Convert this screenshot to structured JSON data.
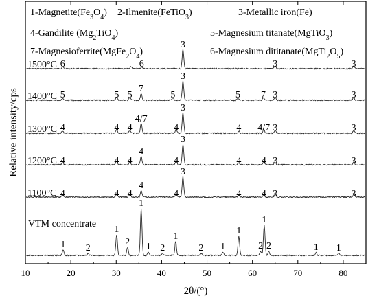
{
  "chart_data": {
    "type": "line",
    "xlabel": "2θ/(°)",
    "ylabel": "Relative intensity/cps",
    "xlim": [
      10,
      85
    ],
    "x_ticks": [
      10,
      20,
      30,
      40,
      50,
      60,
      70,
      80
    ],
    "legend": [
      {
        "html": "1-Magnetite(Fe<tspan baseline-shift=\"sub\" font-size=\"10\">3</tspan>O<tspan baseline-shift=\"sub\" font-size=\"10\">4</tspan>)"
      },
      {
        "html": "2-Ilmenite(FeTiO<tspan baseline-shift=\"sub\" font-size=\"10\">3</tspan>)"
      },
      {
        "html": "3-Metallic iron(Fe)"
      },
      {
        "html": "4-Gandilite (Mg<tspan baseline-shift=\"sub\" font-size=\"10\">2</tspan>TiO<tspan baseline-shift=\"sub\" font-size=\"10\">4</tspan>)"
      },
      {
        "html": "5-Magnesium titanate(MgTiO<tspan baseline-shift=\"sub\" font-size=\"10\">3</tspan>)"
      },
      {
        "html": "7-Magnesioferrite(MgFe<tspan baseline-shift=\"sub\" font-size=\"10\">2</tspan>O<tspan baseline-shift=\"sub\" font-size=\"10\">4</tspan>)"
      },
      {
        "html": "6-Magnesium dititanate(MgTi<tspan baseline-shift=\"sub\" font-size=\"10\">2</tspan>O<tspan baseline-shift=\"sub\" font-size=\"10\">5</tspan>)"
      }
    ],
    "series": [
      {
        "name": "1500°C",
        "peaks": [
          {
            "x": 18.2,
            "h": 3,
            "label": "6"
          },
          {
            "x": 33.3,
            "h": 3
          },
          {
            "x": 35.6,
            "h": 3,
            "label": "6"
          },
          {
            "x": 44.7,
            "h": 28,
            "label": "3"
          },
          {
            "x": 65.0,
            "h": 4,
            "label": "3"
          },
          {
            "x": 82.3,
            "h": 4,
            "label": "3"
          }
        ]
      },
      {
        "name": "1400°C",
        "peaks": [
          {
            "x": 18.2,
            "h": 3,
            "label": "5"
          },
          {
            "x": 30.1,
            "h": 5,
            "label": "5"
          },
          {
            "x": 33.0,
            "h": 4,
            "label": "5"
          },
          {
            "x": 35.5,
            "h": 10,
            "label": "7"
          },
          {
            "x": 42.5,
            "h": 4,
            "label": "5"
          },
          {
            "x": 44.7,
            "h": 28,
            "label": "3"
          },
          {
            "x": 56.8,
            "h": 3,
            "label": "5"
          },
          {
            "x": 62.4,
            "h": 4,
            "label": "7"
          },
          {
            "x": 65.0,
            "h": 4,
            "label": "3"
          },
          {
            "x": 82.3,
            "h": 4,
            "label": "3"
          }
        ]
      },
      {
        "name": "1300°C",
        "peaks": [
          {
            "x": 18.2,
            "h": 3,
            "label": "4"
          },
          {
            "x": 30.1,
            "h": 6,
            "label": "4"
          },
          {
            "x": 33.0,
            "h": 4,
            "label": "4"
          },
          {
            "x": 35.5,
            "h": 14,
            "label": "4/7"
          },
          {
            "x": 43.2,
            "h": 6,
            "label": "4"
          },
          {
            "x": 44.7,
            "h": 30,
            "label": "3"
          },
          {
            "x": 57.0,
            "h": 3,
            "label": "4"
          },
          {
            "x": 62.5,
            "h": 6,
            "label": "4/7"
          },
          {
            "x": 65.0,
            "h": 4,
            "label": "3"
          },
          {
            "x": 82.3,
            "h": 4,
            "label": "3"
          }
        ]
      },
      {
        "name": "1200°C",
        "peaks": [
          {
            "x": 18.2,
            "h": 3,
            "label": "4"
          },
          {
            "x": 30.1,
            "h": 6,
            "label": "4"
          },
          {
            "x": 33.0,
            "h": 4,
            "label": "4"
          },
          {
            "x": 35.5,
            "h": 12,
            "label": "4"
          },
          {
            "x": 43.2,
            "h": 6,
            "label": "4"
          },
          {
            "x": 44.7,
            "h": 30,
            "label": "3"
          },
          {
            "x": 57.0,
            "h": 3,
            "label": "4"
          },
          {
            "x": 62.5,
            "h": 5,
            "label": "4"
          },
          {
            "x": 65.0,
            "h": 4,
            "label": "3"
          },
          {
            "x": 82.3,
            "h": 4,
            "label": "3"
          }
        ]
      },
      {
        "name": "1100°C",
        "peaks": [
          {
            "x": 18.2,
            "h": 3,
            "label": "4"
          },
          {
            "x": 30.1,
            "h": 5,
            "label": "4"
          },
          {
            "x": 33.0,
            "h": 4,
            "label": "4"
          },
          {
            "x": 35.5,
            "h": 10,
            "label": "4"
          },
          {
            "x": 43.2,
            "h": 5,
            "label": "4"
          },
          {
            "x": 44.7,
            "h": 30,
            "label": "3"
          },
          {
            "x": 57.0,
            "h": 3,
            "label": "4"
          },
          {
            "x": 62.5,
            "h": 4,
            "label": "4"
          },
          {
            "x": 65.0,
            "h": 4,
            "label": "3"
          },
          {
            "x": 82.3,
            "h": 4,
            "label": "3"
          }
        ]
      },
      {
        "name": "VTM concentrate",
        "peaks": [
          {
            "x": 18.3,
            "h": 8,
            "label": "1"
          },
          {
            "x": 23.8,
            "h": 3,
            "label": "2"
          },
          {
            "x": 30.1,
            "h": 30,
            "label": "1"
          },
          {
            "x": 32.5,
            "h": 12,
            "label": "2"
          },
          {
            "x": 35.5,
            "h": 68,
            "label": "1"
          },
          {
            "x": 37.1,
            "h": 5,
            "label": "1"
          },
          {
            "x": 40.2,
            "h": 3,
            "label": "2"
          },
          {
            "x": 43.1,
            "h": 20,
            "label": "1"
          },
          {
            "x": 48.7,
            "h": 3,
            "label": "2"
          },
          {
            "x": 53.5,
            "h": 5,
            "label": "1"
          },
          {
            "x": 57.0,
            "h": 28,
            "label": "1"
          },
          {
            "x": 61.8,
            "h": 6,
            "label": "2"
          },
          {
            "x": 62.6,
            "h": 44,
            "label": "1"
          },
          {
            "x": 63.6,
            "h": 6,
            "label": "2"
          },
          {
            "x": 74.0,
            "h": 4,
            "label": "1"
          },
          {
            "x": 79.0,
            "h": 3,
            "label": "1"
          }
        ]
      }
    ]
  }
}
